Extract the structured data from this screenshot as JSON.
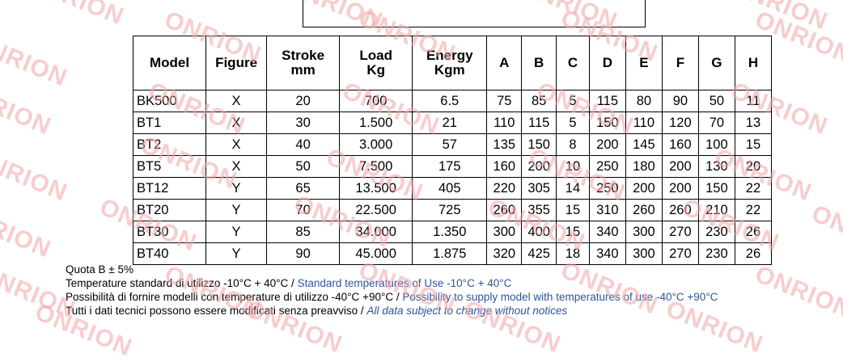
{
  "table": {
    "headers": {
      "model": "Model",
      "figure": "Figure",
      "stroke": [
        "Stroke",
        "mm"
      ],
      "load": [
        "Load",
        "Kg"
      ],
      "energy": [
        "Energy",
        "Kgm"
      ],
      "a": "A",
      "b": "B",
      "c": "C",
      "d": "D",
      "e": "E",
      "f": "F",
      "g": "G",
      "h": "H"
    },
    "rows": [
      [
        "BK500",
        "X",
        "20",
        "700",
        "6.5",
        "75",
        "85",
        "5",
        "115",
        "80",
        "90",
        "50",
        "11"
      ],
      [
        "BT1",
        "X",
        "30",
        "1.500",
        "21",
        "110",
        "115",
        "5",
        "150",
        "110",
        "120",
        "70",
        "13"
      ],
      [
        "BT2",
        "X",
        "40",
        "3.000",
        "57",
        "135",
        "150",
        "8",
        "200",
        "145",
        "160",
        "100",
        "15"
      ],
      [
        "BT5",
        "X",
        "50",
        "7.500",
        "175",
        "160",
        "200",
        "10",
        "250",
        "180",
        "200",
        "130",
        "20"
      ],
      [
        "BT12",
        "Y",
        "65",
        "13.500",
        "405",
        "220",
        "305",
        "14",
        "250",
        "200",
        "200",
        "150",
        "22"
      ],
      [
        "BT20",
        "Y",
        "70",
        "22.500",
        "725",
        "260",
        "355",
        "15",
        "310",
        "260",
        "260",
        "210",
        "22"
      ],
      [
        "BT30",
        "Y",
        "85",
        "34.000",
        "1.350",
        "300",
        "400",
        "15",
        "340",
        "300",
        "270",
        "230",
        "26"
      ],
      [
        "BT40",
        "Y",
        "90",
        "45.000",
        "1.875",
        "320",
        "425",
        "18",
        "340",
        "300",
        "270",
        "230",
        "26"
      ]
    ]
  },
  "notes": {
    "quota": "Quota B ± 5%",
    "temp_it": "Temperature standard di utilizzo -10°C + 40°C / ",
    "temp_en": "Standard temperatures of Use -10°C + 40°C",
    "models_it": "Possibilità di fornire modelli con temperature di utilizzo -40°C +90°C / ",
    "models_en": "Possibility to supply model with temperatures of use -40°C +90°C",
    "data_it": "Tutti i dati tecnici possono essere modificati senza preavviso / ",
    "data_en": "All data subject to change without notices"
  },
  "watermark": {
    "text": "ONRION",
    "color": "#f2a6a6"
  },
  "colors": {
    "english_text": "#2f5597",
    "border": "#000000"
  }
}
